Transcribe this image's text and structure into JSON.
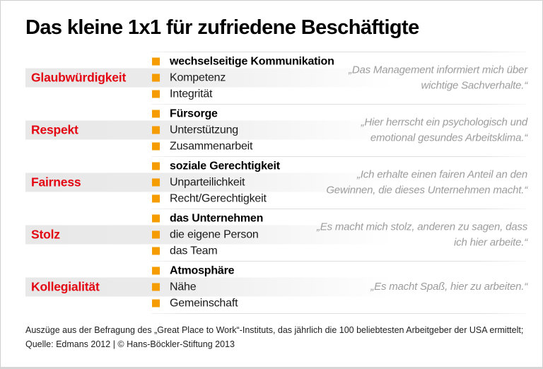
{
  "page": {
    "title": "Das kleine 1x1 für zufriedene Beschäftigte"
  },
  "colors": {
    "label_red": "#e30613",
    "bullet_orange": "#f59c00",
    "quote_gray": "#9c9c9c",
    "band_gray": "#e8e8e8",
    "divider_gray": "#dedede"
  },
  "icons": {
    "bullet": "square"
  },
  "rows": [
    {
      "label": "Glaubwürdigkeit",
      "items": [
        "wechselseitige Kommunikation",
        "Kompetenz",
        "Integrität"
      ],
      "quote": "„Das Management informiert mich über wichtige Sachverhalte.“"
    },
    {
      "label": "Respekt",
      "items": [
        "Fürsorge",
        "Unterstützung",
        "Zusammenarbeit"
      ],
      "quote": "„Hier herrscht ein psychologisch und emotional gesundes Arbeitsklima.“"
    },
    {
      "label": "Fairness",
      "items": [
        "soziale Gerechtigkeit",
        "Unparteilichkeit",
        "Recht/Gerechtigkeit"
      ],
      "quote": "„Ich erhalte einen fairen Anteil an den Gewinnen, die dieses Unternehmen macht.“"
    },
    {
      "label": "Stolz",
      "items": [
        "das Unternehmen",
        "die eigene Person",
        "das Team"
      ],
      "quote": "„Es macht mich stolz, anderen zu sagen, dass ich hier arbeite.“"
    },
    {
      "label": "Kollegialität",
      "items": [
        "Atmosphäre",
        "Nähe",
        "Gemeinschaft"
      ],
      "quote": "„Es macht Spaß, hier zu arbeiten.“"
    }
  ],
  "footer": {
    "line1": "Auszüge aus der Befragung des „Great Place to Work“-Instituts, das jährlich die 100 beliebtesten Arbeitgeber der USA ermittelt;",
    "line2": "Quelle: Edmans 2012 | © Hans-Böckler-Stiftung 2013"
  }
}
